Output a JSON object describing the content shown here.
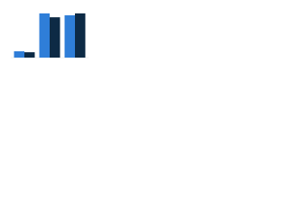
{
  "chart_data": {
    "type": "bar",
    "categories": [
      null,
      null,
      null
    ],
    "series": [
      {
        "color": "#2f7ed8",
        "values": [
          13,
          91,
          87
        ]
      },
      {
        "color": "#0d2a45",
        "values": [
          11,
          83,
          91
        ]
      }
    ],
    "ylim": [
      0,
      100
    ]
  }
}
